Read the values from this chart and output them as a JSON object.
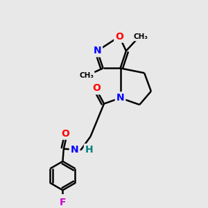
{
  "bg_color": "#e8e8e8",
  "bond_color": "#000000",
  "bond_width": 1.8,
  "atom_colors": {
    "O": "#ff0000",
    "N": "#0000ff",
    "F": "#cc00cc",
    "H": "#008080",
    "C": "#000000"
  },
  "font_size_atom": 10,
  "font_size_methyl": 8
}
